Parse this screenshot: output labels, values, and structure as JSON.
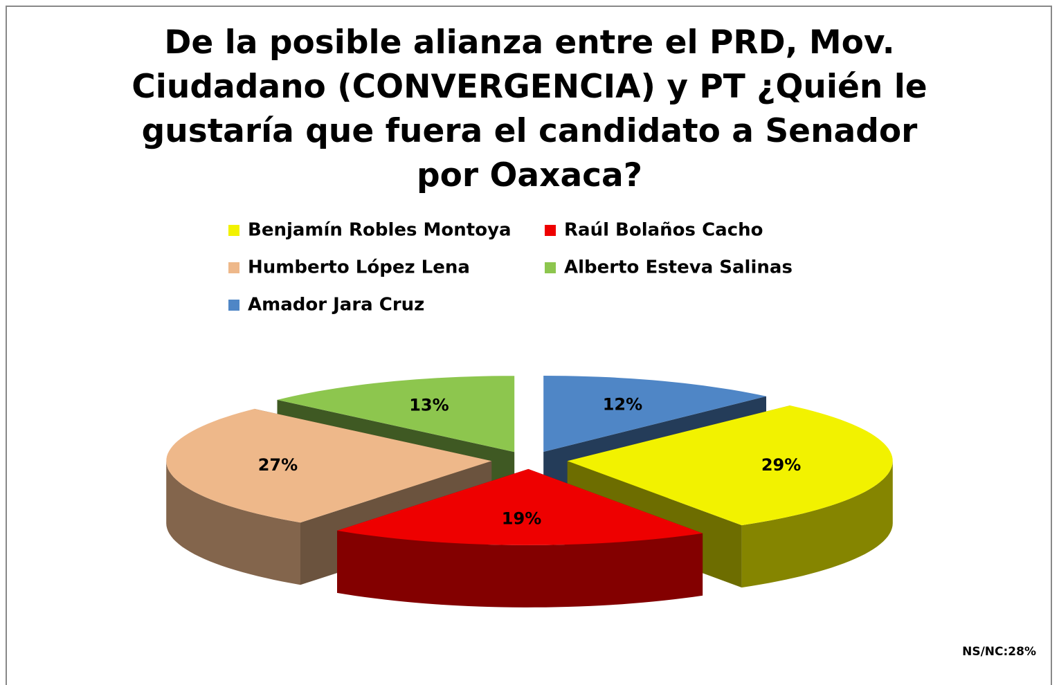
{
  "chart_data": {
    "type": "pie3d",
    "title": "De la posible alianza entre el PRD, Mov. Ciudadano (CONVERGENCIA) y PT ¿Quién le gustaría que fuera el candidato a Senador por Oaxaca?",
    "categories": [
      "Benjamín Robles Montoya",
      "Raúl Bolaños Cacho",
      "Humberto López Lena",
      "Alberto Esteva Salinas",
      "Amador Jara Cruz"
    ],
    "values": [
      29,
      19,
      27,
      13,
      12
    ],
    "value_labels": [
      "29%",
      "19%",
      "27%",
      "13%",
      "12%"
    ],
    "colors": [
      "#f2f200",
      "#ee0000",
      "#eeb88a",
      "#8dc64e",
      "#4f86c6"
    ],
    "annotation": "NS/NC:28%"
  }
}
